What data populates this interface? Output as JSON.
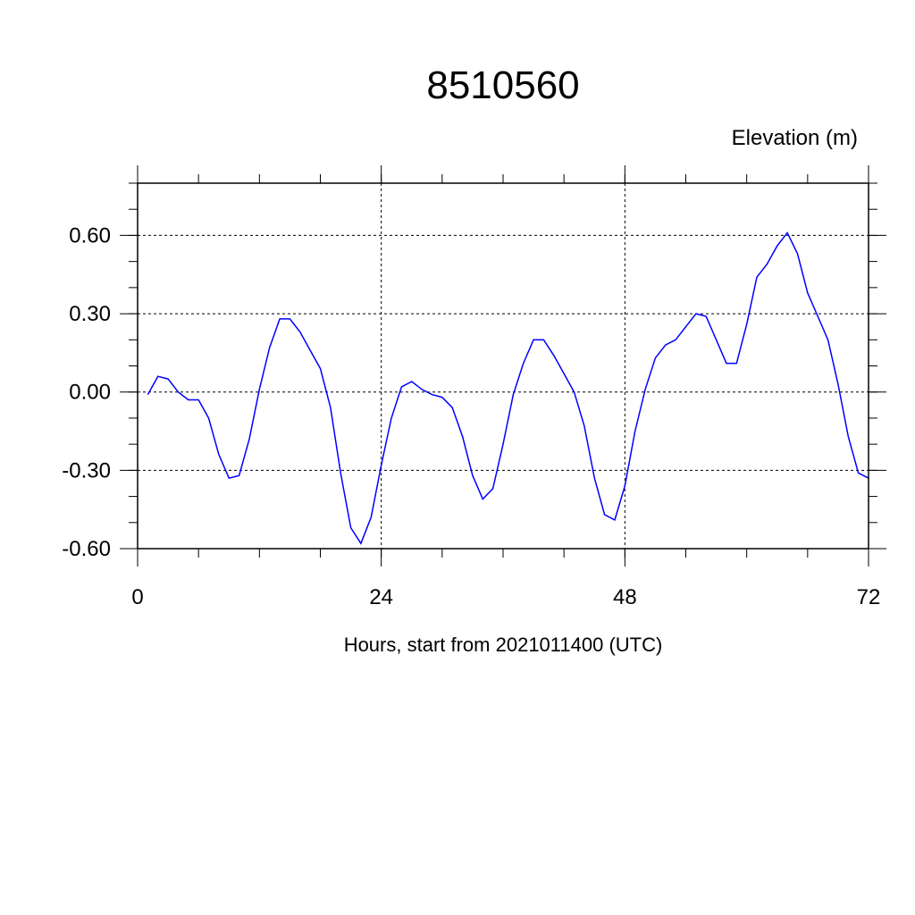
{
  "chart_data": {
    "type": "line",
    "title": "8510560",
    "ylabel": "Elevation (m)",
    "xlabel": "Hours, start from 2021011400 (UTC)",
    "xlim": [
      0,
      72
    ],
    "ylim": [
      -0.6,
      0.8
    ],
    "x_ticks": [
      0,
      24,
      48,
      72
    ],
    "x_tick_labels": [
      "0",
      "24",
      "48",
      "72"
    ],
    "y_ticks": [
      -0.6,
      -0.3,
      0.0,
      0.3,
      0.6
    ],
    "y_tick_labels": [
      "-0.60",
      "-0.30",
      "0.00",
      "0.30",
      "0.60"
    ],
    "grid": true,
    "color": "#0000ff",
    "x": [
      1,
      2,
      3,
      4,
      5,
      6,
      7,
      8,
      9,
      10,
      11,
      12,
      13,
      14,
      15,
      16,
      17,
      18,
      19,
      20,
      21,
      22,
      23,
      24,
      25,
      26,
      27,
      28,
      29,
      30,
      31,
      32,
      33,
      34,
      35,
      36,
      37,
      38,
      39,
      40,
      41,
      42,
      43,
      44,
      45,
      46,
      47,
      48,
      49,
      50,
      51,
      52,
      53,
      54,
      55,
      56,
      57,
      58,
      59,
      60,
      61,
      62,
      63,
      64,
      65,
      66,
      67,
      68,
      69,
      70,
      71,
      72
    ],
    "y": [
      -0.01,
      0.06,
      0.05,
      0.0,
      -0.03,
      -0.03,
      -0.1,
      -0.24,
      -0.33,
      -0.32,
      -0.18,
      0.01,
      0.17,
      0.28,
      0.28,
      0.23,
      0.16,
      0.09,
      -0.06,
      -0.31,
      -0.52,
      -0.58,
      -0.48,
      -0.28,
      -0.1,
      0.02,
      0.04,
      0.01,
      -0.01,
      -0.02,
      -0.06,
      -0.17,
      -0.32,
      -0.41,
      -0.37,
      -0.2,
      -0.01,
      0.11,
      0.2,
      0.2,
      0.14,
      0.07,
      0.0,
      -0.13,
      -0.33,
      -0.47,
      -0.49,
      -0.36,
      -0.15,
      0.01,
      0.13,
      0.18,
      0.2,
      0.25,
      0.3,
      0.29,
      0.2,
      0.11,
      0.11,
      0.26,
      0.44,
      0.49,
      0.56,
      0.61,
      0.53,
      0.38,
      0.29,
      0.2,
      0.03,
      -0.17,
      -0.31,
      -0.33
    ]
  }
}
